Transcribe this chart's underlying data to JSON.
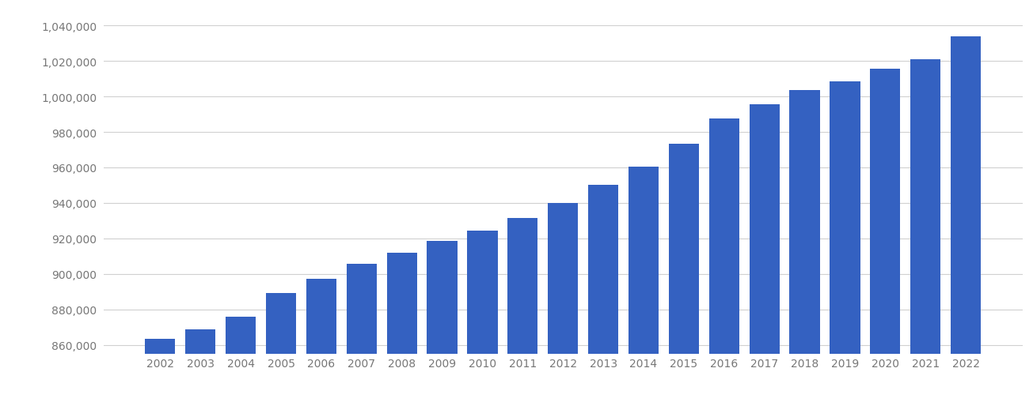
{
  "years": [
    2002,
    2003,
    2004,
    2005,
    2006,
    2007,
    2008,
    2009,
    2010,
    2011,
    2012,
    2013,
    2014,
    2015,
    2016,
    2017,
    2018,
    2019,
    2020,
    2021,
    2022
  ],
  "values": [
    863200,
    868500,
    876000,
    889000,
    897000,
    905500,
    912000,
    918500,
    924500,
    931500,
    940000,
    950000,
    960500,
    973500,
    987500,
    995500,
    1003500,
    1008500,
    1015500,
    1021000,
    1034000
  ],
  "bar_color": "#3461c1",
  "background_color": "#ffffff",
  "ylim_min": 855000,
  "ylim_max": 1048000,
  "ytick_values": [
    860000,
    880000,
    900000,
    920000,
    940000,
    960000,
    980000,
    1000000,
    1020000,
    1040000
  ],
  "grid_color": "#d0d0d0",
  "tick_color": "#888888",
  "font_color": "#777777",
  "font_size": 10
}
